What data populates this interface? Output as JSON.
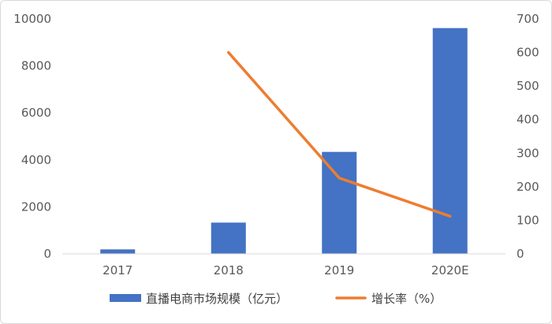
{
  "chart_data": {
    "type": "bar-line-combo",
    "categories": [
      "2017",
      "2018",
      "2019",
      "2020E"
    ],
    "series": [
      {
        "name": "直播电商市场规模（亿元）",
        "type": "bar",
        "axis": "left",
        "color": "#4472c4",
        "values": [
          190,
          1330,
          4340,
          9610
        ]
      },
      {
        "name": "增长率（%）",
        "type": "line",
        "axis": "right",
        "color": "#ed7d31",
        "values": [
          null,
          600,
          226,
          112
        ]
      }
    ],
    "y_left": {
      "min": 0,
      "max": 10000,
      "ticks": [
        "0",
        "2000",
        "4000",
        "6000",
        "8000",
        "10000"
      ]
    },
    "y_right": {
      "min": 0,
      "max": 700,
      "ticks": [
        "0",
        "100",
        "200",
        "300",
        "400",
        "500",
        "600",
        "700"
      ]
    },
    "grid": false,
    "legend_position": "bottom"
  }
}
